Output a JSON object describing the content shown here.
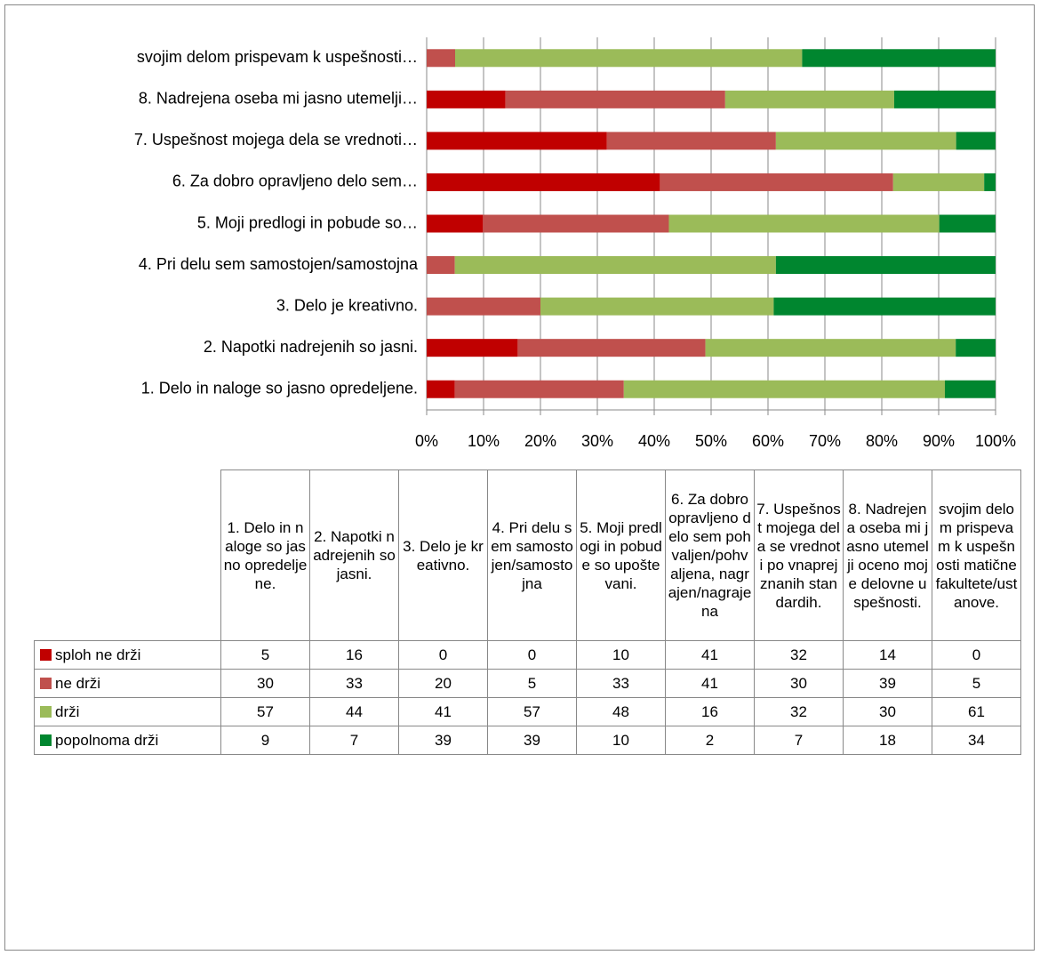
{
  "chart_data": {
    "type": "bar",
    "stacked": "percent",
    "orientation": "horizontal",
    "categories": [
      "1. Delo in naloge so jasno opredeljene.",
      "2. Napotki nadrejenih so jasni.",
      "3. Delo je kreativno.",
      "4. Pri delu sem samostojen/samostojna",
      "5. Moji predlogi in pobude so upoštevani.",
      "6. Za dobro opravljeno delo sem pohvaljen/pohvaljena, nagrajen/nagrajena",
      "7. Uspešnost mojega dela se vrednoti po vnaprej znanih standardih.",
      "8. Nadrejena oseba mi jasno utemelji oceno moje delovne uspešnosti.",
      "svojim delom prispevam k uspešnosti matične fakultete/ustanove."
    ],
    "category_labels": [
      "1. Delo in naloge so jasno opredeljene.",
      "2. Napotki nadrejenih so jasni.",
      "3. Delo je kreativno.",
      "4. Pri delu sem samostojen/samostojna",
      "5. Moji predlogi in pobude so…",
      "6. Za dobro opravljeno delo sem…",
      "7. Uspešnost mojega dela se vrednoti…",
      "8. Nadrejena oseba mi jasno utemelji…",
      "svojim delom prispevam k uspešnosti…"
    ],
    "series": [
      {
        "name": "sploh ne drži",
        "color": "#c00000",
        "values": [
          5,
          16,
          0,
          0,
          10,
          41,
          32,
          14,
          0
        ]
      },
      {
        "name": "ne drži",
        "color": "#c0504d",
        "values": [
          30,
          33,
          20,
          5,
          33,
          41,
          30,
          39,
          5
        ]
      },
      {
        "name": "drži",
        "color": "#9bbb59",
        "values": [
          57,
          44,
          41,
          57,
          48,
          16,
          32,
          30,
          61
        ]
      },
      {
        "name": "popolnoma drži",
        "color": "#00862f",
        "values": [
          9,
          7,
          39,
          39,
          10,
          2,
          7,
          18,
          34
        ]
      }
    ],
    "xlim": [
      0,
      100
    ],
    "xticks": [
      {
        "value": 0,
        "label": "0%"
      },
      {
        "value": 10,
        "label": "10%"
      },
      {
        "value": 20,
        "label": "20%"
      },
      {
        "value": 30,
        "label": "30%"
      },
      {
        "value": 40,
        "label": "40%"
      },
      {
        "value": 50,
        "label": "50%"
      },
      {
        "value": 60,
        "label": "60%"
      },
      {
        "value": 70,
        "label": "70%"
      },
      {
        "value": 80,
        "label": "80%"
      },
      {
        "value": 90,
        "label": "90%"
      },
      {
        "value": 100,
        "label": "100%"
      }
    ],
    "grid": true
  }
}
